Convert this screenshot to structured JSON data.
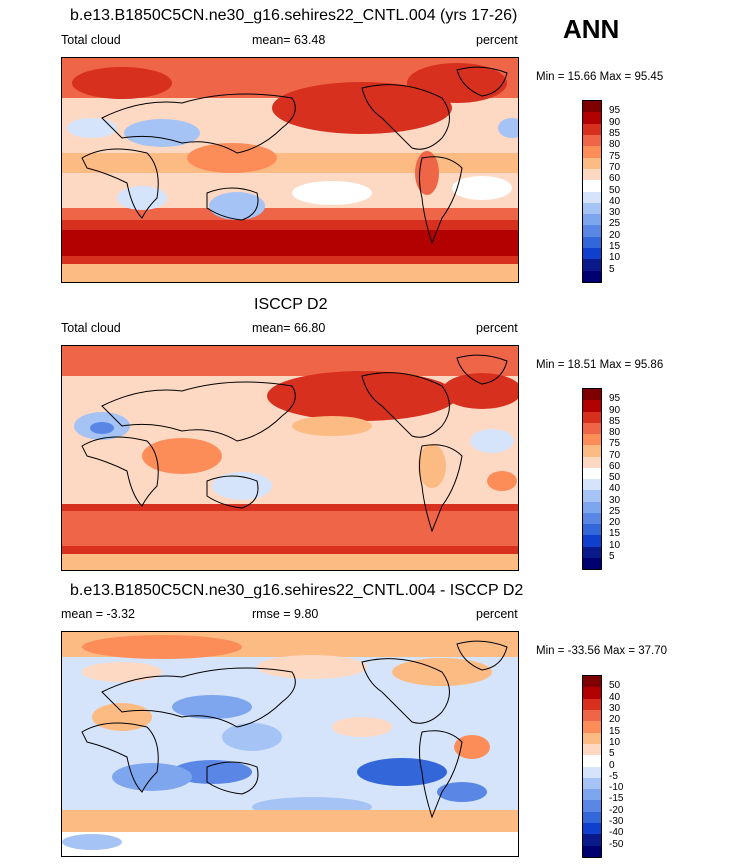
{
  "season": "ANN",
  "panels": [
    {
      "title": "b.e13.B1850C5CN.ne30_g16.sehires22_CNTL.004 (yrs 17-26)",
      "left": "Total cloud",
      "center": "mean=  63.48",
      "right": "percent",
      "minmax": "Min =  15.66 Max =  95.45",
      "levels": [
        "95",
        "90",
        "85",
        "80",
        "75",
        "70",
        "60",
        "50",
        "40",
        "30",
        "25",
        "20",
        "15",
        "10",
        "5"
      ],
      "colors": [
        "#7f0000",
        "#b30000",
        "#d7301f",
        "#ef6548",
        "#fc8d59",
        "#fdbb84",
        "#fdd9c4",
        "#ffffff",
        "#d6e4fb",
        "#a6c3f5",
        "#7ea6ee",
        "#5a86e6",
        "#3366d9",
        "#0f3fcc",
        "#0a1a8a",
        "#000070"
      ]
    },
    {
      "title": "ISCCP D2",
      "left": "Total cloud",
      "center": "mean=  66.80",
      "right": "percent",
      "minmax": "Min =  18.51 Max =  95.86",
      "levels": [
        "95",
        "90",
        "85",
        "80",
        "75",
        "70",
        "60",
        "50",
        "40",
        "30",
        "25",
        "20",
        "15",
        "10",
        "5"
      ],
      "colors": [
        "#7f0000",
        "#b30000",
        "#d7301f",
        "#ef6548",
        "#fc8d59",
        "#fdbb84",
        "#fdd9c4",
        "#ffffff",
        "#d6e4fb",
        "#a6c3f5",
        "#7ea6ee",
        "#5a86e6",
        "#3366d9",
        "#0f3fcc",
        "#0a1a8a",
        "#000070"
      ]
    },
    {
      "title": "b.e13.B1850C5CN.ne30_g16.sehires22_CNTL.004 - ISCCP D2",
      "left": "mean =  -3.32",
      "center": "rmse =   9.80",
      "right": "percent",
      "minmax": "Min = -33.56 Max =  37.70",
      "levels": [
        "50",
        "40",
        "30",
        "20",
        "15",
        "10",
        "5",
        "0",
        "-5",
        "-10",
        "-15",
        "-20",
        "-30",
        "-40",
        "-50"
      ],
      "colors": [
        "#7f0000",
        "#b30000",
        "#d7301f",
        "#ef6548",
        "#fc8d59",
        "#fdbb84",
        "#fdd9c4",
        "#ffffff",
        "#d6e4fb",
        "#a6c3f5",
        "#7ea6ee",
        "#5a86e6",
        "#3366d9",
        "#0f3fcc",
        "#0a1a8a",
        "#000070"
      ]
    }
  ],
  "chart_data": [
    {
      "type": "heatmap",
      "title": "b.e13.B1850C5CN.ne30_g16.sehires22_CNTL.004 (yrs 17-26)",
      "variable": "Total cloud",
      "units": "percent",
      "mean": 63.48,
      "min": 15.66,
      "max": 95.45,
      "contour_levels": [
        5,
        10,
        15,
        20,
        25,
        30,
        40,
        50,
        60,
        70,
        75,
        80,
        85,
        90,
        95
      ]
    },
    {
      "type": "heatmap",
      "title": "ISCCP D2",
      "variable": "Total cloud",
      "units": "percent",
      "mean": 66.8,
      "min": 18.51,
      "max": 95.86,
      "contour_levels": [
        5,
        10,
        15,
        20,
        25,
        30,
        40,
        50,
        60,
        70,
        75,
        80,
        85,
        90,
        95
      ]
    },
    {
      "type": "heatmap",
      "title": "b.e13.B1850C5CN.ne30_g16.sehires22_CNTL.004 - ISCCP D2",
      "units": "percent",
      "mean": -3.32,
      "rmse": 9.8,
      "min": -33.56,
      "max": 37.7,
      "contour_levels": [
        -50,
        -40,
        -30,
        -20,
        -15,
        -10,
        -5,
        0,
        5,
        10,
        15,
        20,
        30,
        40,
        50
      ]
    }
  ]
}
